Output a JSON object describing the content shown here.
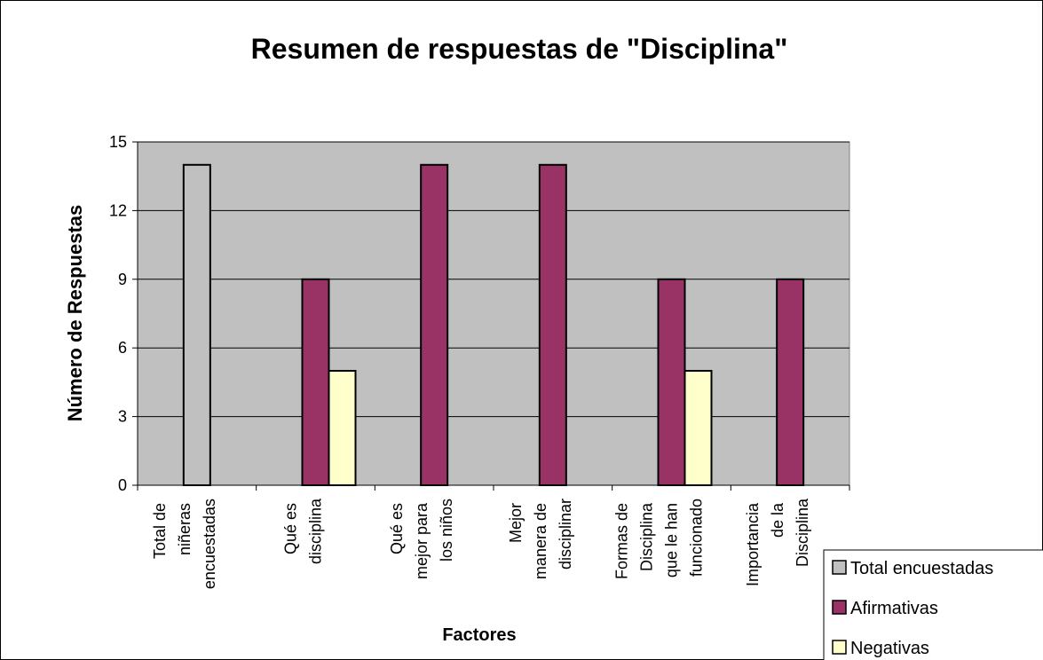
{
  "chart_data": {
    "type": "bar",
    "title": "Resumen de respuestas de \"Disciplina\"",
    "x_label": "Factores",
    "y_label": "Número de Respuestas",
    "categories": [
      "Total de niñeras encuestadas",
      "Qué es disciplina",
      "Qué es mejor para los niños",
      "Mejor manera de disciplinar",
      "Formas de Disciplina que le han funcionado",
      "Importancia de la Disciplina"
    ],
    "series": [
      {
        "name": "Total encuestadas",
        "color": "#c0c0c0",
        "values": [
          14,
          null,
          null,
          null,
          null,
          null
        ]
      },
      {
        "name": "Afirmativas",
        "color": "#993366",
        "values": [
          null,
          9,
          14,
          14,
          9,
          9
        ]
      },
      {
        "name": "Negativas",
        "color": "#ffffcc",
        "values": [
          null,
          5,
          null,
          null,
          5,
          null
        ]
      }
    ],
    "ylim": [
      0,
      15
    ],
    "yticks": [
      0,
      3,
      6,
      9,
      12,
      15
    ],
    "grid": true,
    "plot_background": "#c0c0c0",
    "legend": "bottom-right"
  }
}
